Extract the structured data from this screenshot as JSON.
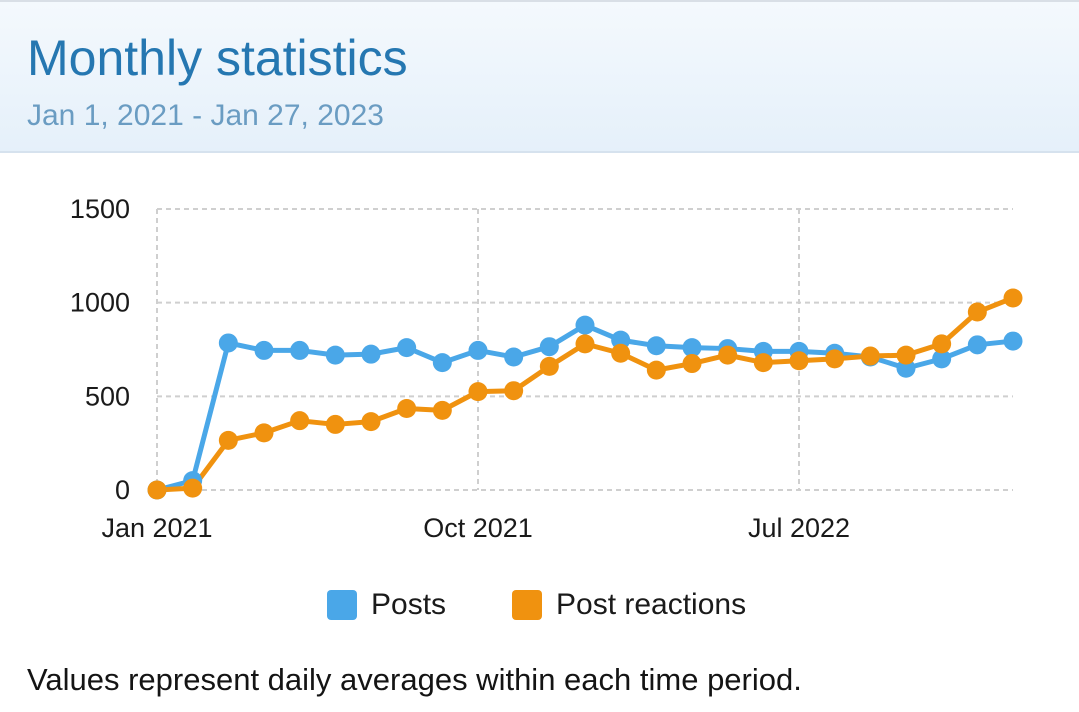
{
  "header": {
    "title": "Monthly statistics",
    "date_range": "Jan 1, 2021 - Jan 27, 2023"
  },
  "colors": {
    "posts": "#4aa7e8",
    "post_reactions": "#f0920f",
    "grid": "#cfcfcf",
    "title": "#2577b1",
    "subtitle": "#6a9cc2"
  },
  "chart_data": {
    "type": "line",
    "title": "",
    "xlabel": "",
    "ylabel": "",
    "ylim": [
      0,
      1500
    ],
    "y_ticks": [
      "0",
      "500",
      "1000",
      "1500"
    ],
    "x_tick_labels": [
      "Jan 2021",
      "Oct 2021",
      "Jul 2022"
    ],
    "x": [
      "2021-01",
      "2021-02",
      "2021-03",
      "2021-04",
      "2021-05",
      "2021-06",
      "2021-07",
      "2021-08",
      "2021-09",
      "2021-10",
      "2021-11",
      "2021-12",
      "2022-01",
      "2022-02",
      "2022-03",
      "2022-04",
      "2022-05",
      "2022-06",
      "2022-07",
      "2022-08",
      "2022-09",
      "2022-10",
      "2022-11",
      "2022-12",
      "2023-01"
    ],
    "grid": true,
    "legend_position": "bottom",
    "series": [
      {
        "name": "Posts",
        "values": [
          0,
          50,
          785,
          745,
          745,
          720,
          725,
          760,
          680,
          745,
          710,
          765,
          880,
          800,
          770,
          760,
          755,
          740,
          740,
          730,
          710,
          650,
          700,
          775,
          795
        ]
      },
      {
        "name": "Post reactions",
        "values": [
          0,
          10,
          265,
          305,
          370,
          350,
          365,
          435,
          425,
          525,
          530,
          660,
          780,
          730,
          640,
          675,
          720,
          680,
          690,
          700,
          715,
          720,
          780,
          950,
          1025
        ]
      }
    ]
  },
  "legend": {
    "items": [
      "Posts",
      "Post reactions"
    ]
  },
  "footnote": "Values represent daily averages within each time period."
}
